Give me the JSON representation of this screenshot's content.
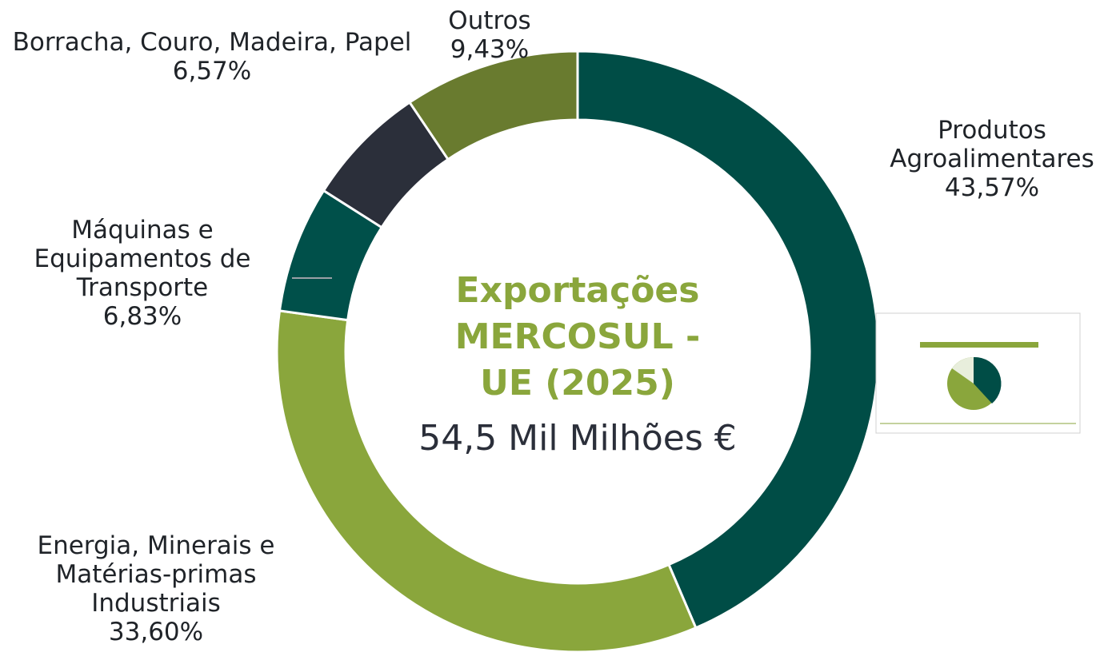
{
  "chart_data": {
    "type": "donut",
    "title": "Exportações MERCOSUL - UE (2025)",
    "subtitle": "54,5 Mil Milhões €",
    "categories": [
      "Produtos Agroalimentares",
      "Energia, Minerais e Matérias-primas Industriais",
      "Máquinas e Equipamentos de Transporte",
      "Borracha, Couro, Madeira, Papel",
      "Outros"
    ],
    "values": [
      43.57,
      33.6,
      6.83,
      6.57,
      9.43
    ],
    "value_labels": [
      "43,57%",
      "33,60%",
      "6,83%",
      "6,57%",
      "9,43%"
    ],
    "colors": [
      "#004d46",
      "#8aa63c",
      "#00504a",
      "#2b2f3a",
      "#697b2f"
    ]
  }
}
